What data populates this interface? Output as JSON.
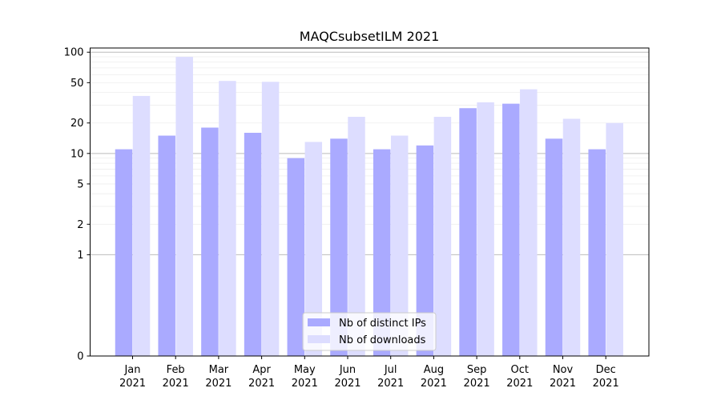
{
  "chart_data": {
    "type": "bar",
    "title": "MAQCsubsetILM 2021",
    "xlabel": "",
    "ylabel": "",
    "y_scale": "symlog",
    "y_ticks": [
      0,
      1,
      2,
      5,
      10,
      20,
      50,
      100
    ],
    "y_tick_labels": [
      "0",
      "1",
      "2",
      "5",
      "10",
      "20",
      "50",
      "100"
    ],
    "ylim": [
      0,
      110
    ],
    "grid": "horizontal",
    "legend_position": "bottom-center",
    "categories": [
      {
        "month": "Jan",
        "year": "2021"
      },
      {
        "month": "Feb",
        "year": "2021"
      },
      {
        "month": "Mar",
        "year": "2021"
      },
      {
        "month": "Apr",
        "year": "2021"
      },
      {
        "month": "May",
        "year": "2021"
      },
      {
        "month": "Jun",
        "year": "2021"
      },
      {
        "month": "Jul",
        "year": "2021"
      },
      {
        "month": "Aug",
        "year": "2021"
      },
      {
        "month": "Sep",
        "year": "2021"
      },
      {
        "month": "Oct",
        "year": "2021"
      },
      {
        "month": "Nov",
        "year": "2021"
      },
      {
        "month": "Dec",
        "year": "2021"
      }
    ],
    "series": [
      {
        "name": "Nb of distinct IPs",
        "color": "#aaaaff",
        "values": [
          11,
          15,
          18,
          16,
          9,
          14,
          11,
          12,
          28,
          31,
          14,
          11
        ]
      },
      {
        "name": "Nb of downloads",
        "color": "#ddddff",
        "values": [
          37,
          90,
          52,
          51,
          13,
          23,
          15,
          23,
          32,
          43,
          22,
          20
        ]
      }
    ]
  }
}
